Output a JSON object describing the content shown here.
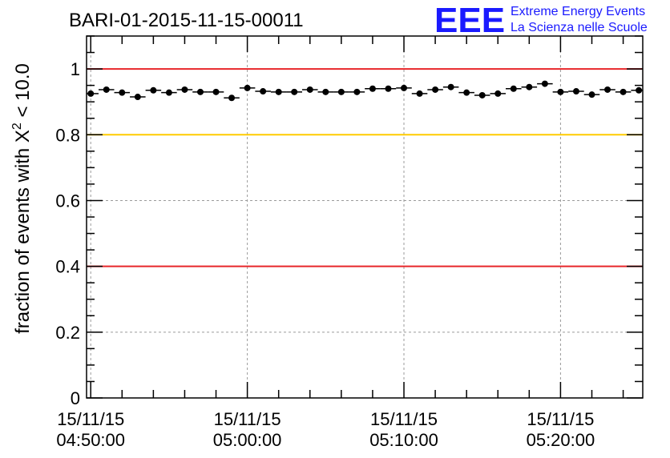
{
  "chart_data": {
    "type": "scatter",
    "title": "BARI-01-2015-11-15-00011",
    "ylabel_prefix": "fraction of events with ",
    "ylabel_symbol": "X",
    "ylabel_sup": "2",
    "ylabel_suffix": " < 10.0",
    "ylim": [
      0,
      1.1
    ],
    "yticks": [
      0,
      0.2,
      0.4,
      0.6,
      0.8,
      1
    ],
    "ytick_labels": [
      "0",
      "0.2",
      "0.4",
      "0.6",
      "0.8",
      "1"
    ],
    "xlim": [
      "04:49:44",
      "05:25:15"
    ],
    "xticks": [
      {
        "date": "15/11/15",
        "time": "04:50:00"
      },
      {
        "date": "15/11/15",
        "time": "05:00:00"
      },
      {
        "date": "15/11/15",
        "time": "05:10:00"
      },
      {
        "date": "15/11/15",
        "time": "05:20:00"
      }
    ],
    "grid": true,
    "reference_lines": [
      {
        "y": 1.0,
        "color": "#e8262a"
      },
      {
        "y": 0.8,
        "color": "#ffcc00"
      },
      {
        "y": 0.4,
        "color": "#e8262a"
      }
    ],
    "bin_minutes": 1,
    "points": [
      {
        "x": "04:50:00",
        "y": 0.925
      },
      {
        "x": "04:51:00",
        "y": 0.937
      },
      {
        "x": "04:52:00",
        "y": 0.928
      },
      {
        "x": "04:53:00",
        "y": 0.915
      },
      {
        "x": "04:54:00",
        "y": 0.935
      },
      {
        "x": "04:55:00",
        "y": 0.928
      },
      {
        "x": "04:56:00",
        "y": 0.937
      },
      {
        "x": "04:57:00",
        "y": 0.93
      },
      {
        "x": "04:58:00",
        "y": 0.93
      },
      {
        "x": "04:59:00",
        "y": 0.912
      },
      {
        "x": "05:00:00",
        "y": 0.942
      },
      {
        "x": "05:01:00",
        "y": 0.932
      },
      {
        "x": "05:02:00",
        "y": 0.93
      },
      {
        "x": "05:03:00",
        "y": 0.93
      },
      {
        "x": "05:04:00",
        "y": 0.937
      },
      {
        "x": "05:05:00",
        "y": 0.93
      },
      {
        "x": "05:06:00",
        "y": 0.93
      },
      {
        "x": "05:07:00",
        "y": 0.93
      },
      {
        "x": "05:08:00",
        "y": 0.94
      },
      {
        "x": "05:09:00",
        "y": 0.94
      },
      {
        "x": "05:10:00",
        "y": 0.942
      },
      {
        "x": "05:11:00",
        "y": 0.925
      },
      {
        "x": "05:12:00",
        "y": 0.937
      },
      {
        "x": "05:13:00",
        "y": 0.945
      },
      {
        "x": "05:14:00",
        "y": 0.928
      },
      {
        "x": "05:15:00",
        "y": 0.92
      },
      {
        "x": "05:16:00",
        "y": 0.925
      },
      {
        "x": "05:17:00",
        "y": 0.94
      },
      {
        "x": "05:18:00",
        "y": 0.945
      },
      {
        "x": "05:19:00",
        "y": 0.955
      },
      {
        "x": "05:20:00",
        "y": 0.93
      },
      {
        "x": "05:21:00",
        "y": 0.932
      },
      {
        "x": "05:22:00",
        "y": 0.922
      },
      {
        "x": "05:23:00",
        "y": 0.937
      },
      {
        "x": "05:24:00",
        "y": 0.93
      },
      {
        "x": "05:25:00",
        "y": 0.935
      }
    ],
    "marker_color": "#000000"
  },
  "logo": {
    "mark": "EEE",
    "line1": "Extreme Energy Events",
    "line2": "La Scienza nelle Scuole",
    "color": "#1a1aff"
  }
}
